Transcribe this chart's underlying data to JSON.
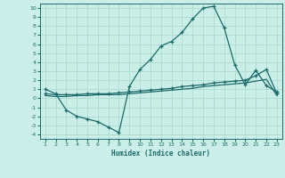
{
  "xlabel": "Humidex (Indice chaleur)",
  "bg_color": "#cceee8",
  "grid_color": "#aaddcc",
  "line_color": "#1a6b6b",
  "xlim": [
    0.5,
    23.5
  ],
  "ylim": [
    -4.5,
    10.5
  ],
  "xticks": [
    1,
    2,
    3,
    4,
    5,
    6,
    7,
    8,
    9,
    10,
    11,
    12,
    13,
    14,
    15,
    16,
    17,
    18,
    19,
    20,
    21,
    22,
    23
  ],
  "yticks": [
    -4,
    -3,
    -2,
    -1,
    0,
    1,
    2,
    3,
    4,
    5,
    6,
    7,
    8,
    9,
    10
  ],
  "curve1_x": [
    1,
    2,
    3,
    4,
    5,
    6,
    7,
    8,
    9,
    10,
    11,
    12,
    13,
    14,
    15,
    16,
    17,
    18,
    19,
    20,
    21,
    22,
    23
  ],
  "curve1_y": [
    1.0,
    0.5,
    -1.3,
    -2.0,
    -2.3,
    -2.6,
    -3.2,
    -3.8,
    1.3,
    3.2,
    4.3,
    5.8,
    6.3,
    7.3,
    8.8,
    10.0,
    10.2,
    7.8,
    3.7,
    1.5,
    3.1,
    1.4,
    0.7
  ],
  "curve2_x": [
    1,
    2,
    3,
    4,
    5,
    6,
    7,
    8,
    9,
    10,
    11,
    12,
    13,
    14,
    15,
    16,
    17,
    18,
    19,
    20,
    21,
    22,
    23
  ],
  "curve2_y": [
    0.5,
    0.4,
    0.4,
    0.4,
    0.5,
    0.5,
    0.5,
    0.6,
    0.7,
    0.8,
    0.9,
    1.0,
    1.1,
    1.3,
    1.4,
    1.5,
    1.7,
    1.8,
    1.9,
    2.0,
    2.5,
    3.2,
    0.5
  ],
  "curve3_x": [
    1,
    2,
    3,
    4,
    5,
    6,
    7,
    8,
    9,
    10,
    11,
    12,
    13,
    14,
    15,
    16,
    17,
    18,
    19,
    20,
    21,
    22,
    23
  ],
  "curve3_y": [
    0.3,
    0.2,
    0.2,
    0.3,
    0.3,
    0.4,
    0.4,
    0.4,
    0.5,
    0.6,
    0.7,
    0.8,
    0.9,
    1.0,
    1.1,
    1.3,
    1.4,
    1.5,
    1.6,
    1.7,
    1.9,
    2.1,
    0.3
  ]
}
